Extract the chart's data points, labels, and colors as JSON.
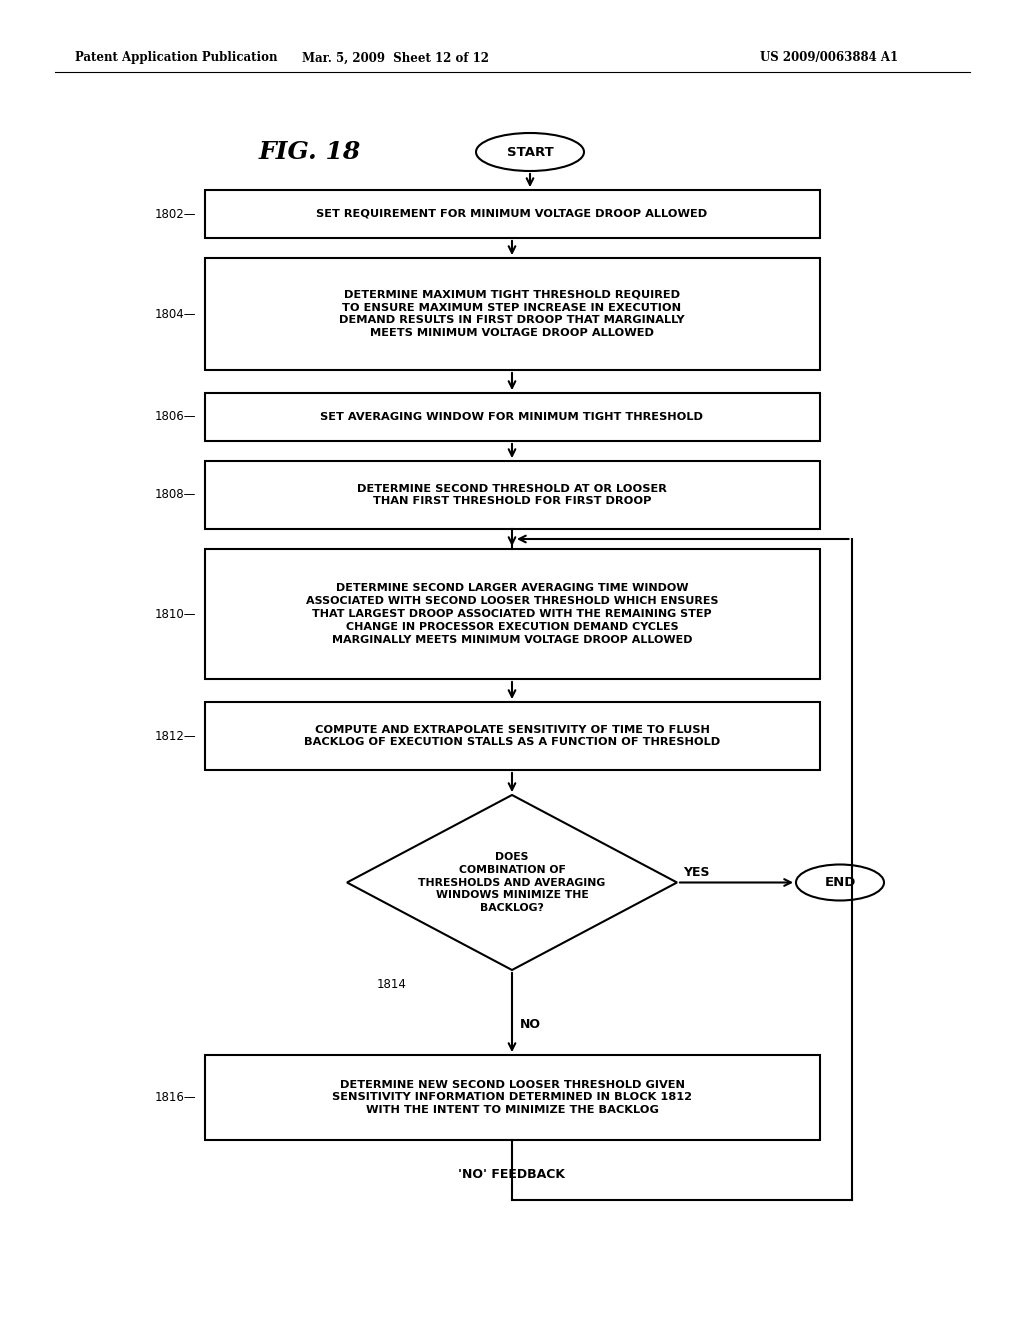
{
  "header_left": "Patent Application Publication",
  "header_mid": "Mar. 5, 2009  Sheet 12 of 12",
  "header_right": "US 2009/0063884 A1",
  "fig_label": "FIG. 18",
  "start_label": "START",
  "end_label": "END",
  "feedback_label": "'NO' FEEDBACK",
  "yes_label": "YES",
  "no_label": "NO",
  "block_1802": "SET REQUIREMENT FOR MINIMUM VOLTAGE DROOP ALLOWED",
  "block_1804": "DETERMINE MAXIMUM TIGHT THRESHOLD REQUIRED\nTO ENSURE MAXIMUM STEP INCREASE IN EXECUTION\nDEMAND RESULTS IN FIRST DROOP THAT MARGINALLY\nMEETS MINIMUM VOLTAGE DROOP ALLOWED",
  "block_1806": "SET AVERAGING WINDOW FOR MINIMUM TIGHT THRESHOLD",
  "block_1808": "DETERMINE SECOND THRESHOLD AT OR LOOSER\nTHAN FIRST THRESHOLD FOR FIRST DROOP",
  "block_1810": "DETERMINE SECOND LARGER AVERAGING TIME WINDOW\nASSOCIATED WITH SECOND LOOSER THRESHOLD WHICH ENSURES\nTHAT LARGEST DROOP ASSOCIATED WITH THE REMAINING STEP\nCHANGE IN PROCESSOR EXECUTION DEMAND CYCLES\nMARGINALLY MEETS MINIMUM VOLTAGE DROOP ALLOWED",
  "block_1812": "COMPUTE AND EXTRAPOLATE SENSITIVITY OF TIME TO FLUSH\nBACKLOG OF EXECUTION STALLS AS A FUNCTION OF THRESHOLD",
  "block_1814": "DOES\nCOMBINATION OF\nTHRESHOLDS AND AVERAGING\nWINDOWS MINIMIZE THE\nBACKLOG?",
  "block_1816": "DETERMINE NEW SECOND LOOSER THRESHOLD GIVEN\nSENSITIVITY INFORMATION DETERMINED IN BLOCK 1812\nWITH THE INTENT TO MINIMIZE THE BACKLOG",
  "bg_color": "#ffffff",
  "line_color": "#000000",
  "text_color": "#000000"
}
